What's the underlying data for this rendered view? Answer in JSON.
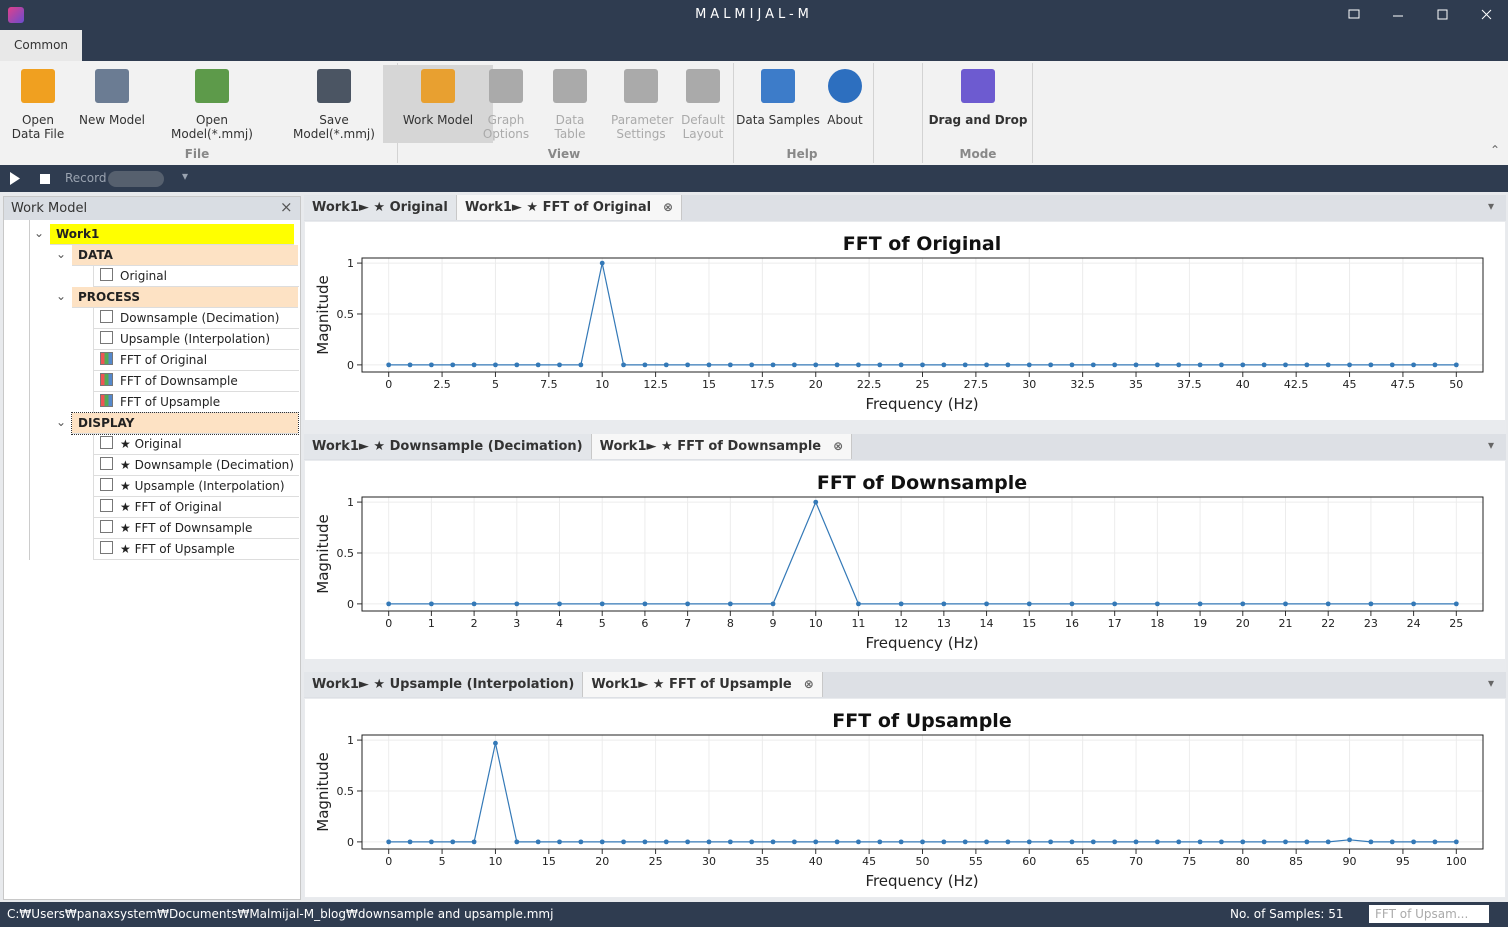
{
  "app_title": "MALMIJAL-M",
  "ribbon": {
    "tab": "Common",
    "groups": [
      {
        "name": "File",
        "buttons": [
          "Open Data File",
          "New Model",
          "Open Model(*.mmj)",
          "Save Model(*.mmj)"
        ]
      },
      {
        "name": "View",
        "buttons": [
          "Work Model",
          "Graph Options",
          "Data Table",
          "Parameter Settings",
          "Default Layout"
        ]
      },
      {
        "name": "Help",
        "buttons": [
          "Data Samples",
          "About"
        ]
      },
      {
        "name": "Mode",
        "buttons": [
          "Drag and Drop"
        ]
      }
    ]
  },
  "toolbar": {
    "record": "Record"
  },
  "work_model": {
    "title": "Work Model",
    "root": "Work1",
    "groups": [
      {
        "name": "DATA",
        "items": [
          "Original"
        ]
      },
      {
        "name": "PROCESS",
        "items": [
          "Downsample (Decimation)",
          "Upsample (Interpolation)",
          "FFT of Original",
          "FFT of Downsample",
          "FFT of Upsample"
        ]
      },
      {
        "name": "DISPLAY",
        "items": [
          "★ Original",
          "★ Downsample (Decimation)",
          "★ Upsample (Interpolation)",
          "★ FFT of Original",
          "★ FFT of Downsample",
          "★ FFT of Upsample"
        ]
      }
    ]
  },
  "panes": [
    {
      "tabs": [
        "Work1► ★ Original",
        "Work1► ★ FFT of Original"
      ]
    },
    {
      "tabs": [
        "Work1► ★ Downsample (Decimation)",
        "Work1► ★ FFT of Downsample"
      ]
    },
    {
      "tabs": [
        "Work1► ★ Upsample (Interpolation)",
        "Work1► ★ FFT of Upsample"
      ]
    }
  ],
  "chart_data": [
    {
      "type": "line",
      "title": "FFT of Original",
      "x_label": "Frequency (Hz)",
      "y_label": "Magnitude",
      "color": "#3479b7",
      "grid": true,
      "x": [
        0,
        1,
        2,
        3,
        4,
        5,
        6,
        7,
        8,
        9,
        10,
        11,
        12,
        13,
        14,
        15,
        16,
        17,
        18,
        19,
        20,
        21,
        22,
        23,
        24,
        25,
        26,
        27,
        28,
        29,
        30,
        31,
        32,
        33,
        34,
        35,
        36,
        37,
        38,
        39,
        40,
        41,
        42,
        43,
        44,
        45,
        46,
        47,
        48,
        49,
        50
      ],
      "values": [
        0,
        0,
        0,
        0,
        0,
        0,
        0,
        0,
        0,
        0,
        1,
        0,
        0,
        0,
        0,
        0,
        0,
        0,
        0,
        0,
        0,
        0,
        0,
        0,
        0,
        0,
        0,
        0,
        0,
        0,
        0,
        0,
        0,
        0,
        0,
        0,
        0,
        0,
        0,
        0,
        0,
        0,
        0,
        0,
        0,
        0,
        0,
        0,
        0,
        0,
        0
      ],
      "xlim": [
        -1.25,
        51.25
      ],
      "xticks": [
        0,
        2.5,
        5,
        7.5,
        10,
        12.5,
        15,
        17.5,
        20,
        22.5,
        25,
        27.5,
        30,
        32.5,
        35,
        37.5,
        40,
        42.5,
        45,
        47.5,
        50
      ],
      "ylim": [
        -0.07,
        1.05
      ],
      "yticks": [
        0,
        0.5,
        1
      ]
    },
    {
      "type": "line",
      "title": "FFT of Downsample",
      "x_label": "Frequency (Hz)",
      "y_label": "Magnitude",
      "color": "#3479b7",
      "grid": true,
      "x": [
        0,
        1,
        2,
        3,
        4,
        5,
        6,
        7,
        8,
        9,
        10,
        11,
        12,
        13,
        14,
        15,
        16,
        17,
        18,
        19,
        20,
        21,
        22,
        23,
        24,
        25
      ],
      "values": [
        0,
        0,
        0,
        0,
        0,
        0,
        0,
        0,
        0,
        0,
        1,
        0,
        0,
        0,
        0,
        0,
        0,
        0,
        0,
        0,
        0,
        0,
        0,
        0,
        0,
        0
      ],
      "xlim": [
        -0.625,
        25.625
      ],
      "xticks": [
        0,
        1,
        2,
        3,
        4,
        5,
        6,
        7,
        8,
        9,
        10,
        11,
        12,
        13,
        14,
        15,
        16,
        17,
        18,
        19,
        20,
        21,
        22,
        23,
        24,
        25
      ],
      "ylim": [
        -0.07,
        1.05
      ],
      "yticks": [
        0,
        0.5,
        1
      ]
    },
    {
      "type": "line",
      "title": "FFT of Upsample",
      "x_label": "Frequency (Hz)",
      "y_label": "Magnitude",
      "color": "#3479b7",
      "grid": true,
      "x": [
        0,
        2,
        4,
        6,
        8,
        10,
        12,
        14,
        16,
        18,
        20,
        22,
        24,
        26,
        28,
        30,
        32,
        34,
        36,
        38,
        40,
        42,
        44,
        46,
        48,
        50,
        52,
        54,
        56,
        58,
        60,
        62,
        64,
        66,
        68,
        70,
        72,
        74,
        76,
        78,
        80,
        82,
        84,
        86,
        88,
        90,
        92,
        94,
        96,
        98,
        100
      ],
      "values": [
        0,
        0,
        0,
        0,
        0,
        0.97,
        0,
        0,
        0,
        0,
        0,
        0,
        0,
        0,
        0,
        0,
        0,
        0,
        0,
        0,
        0,
        0,
        0,
        0,
        0,
        0,
        0,
        0,
        0,
        0,
        0,
        0,
        0,
        0,
        0,
        0,
        0,
        0,
        0,
        0,
        0,
        0,
        0,
        0,
        0,
        0.02,
        0,
        0,
        0,
        0,
        0
      ],
      "xlim": [
        -2.5,
        102.5
      ],
      "xticks": [
        0,
        5,
        10,
        15,
        20,
        25,
        30,
        35,
        40,
        45,
        50,
        55,
        60,
        65,
        70,
        75,
        80,
        85,
        90,
        95,
        100
      ],
      "ylim": [
        -0.07,
        1.05
      ],
      "yticks": [
        0,
        0.5,
        1
      ]
    }
  ],
  "status": {
    "path": "C:₩Users₩panaxsystem₩Documents₩Malmijal-M_blog₩downsample and upsample.mmj",
    "samples": "No. of Samples: 51",
    "selector": "FFT of Upsam..."
  }
}
